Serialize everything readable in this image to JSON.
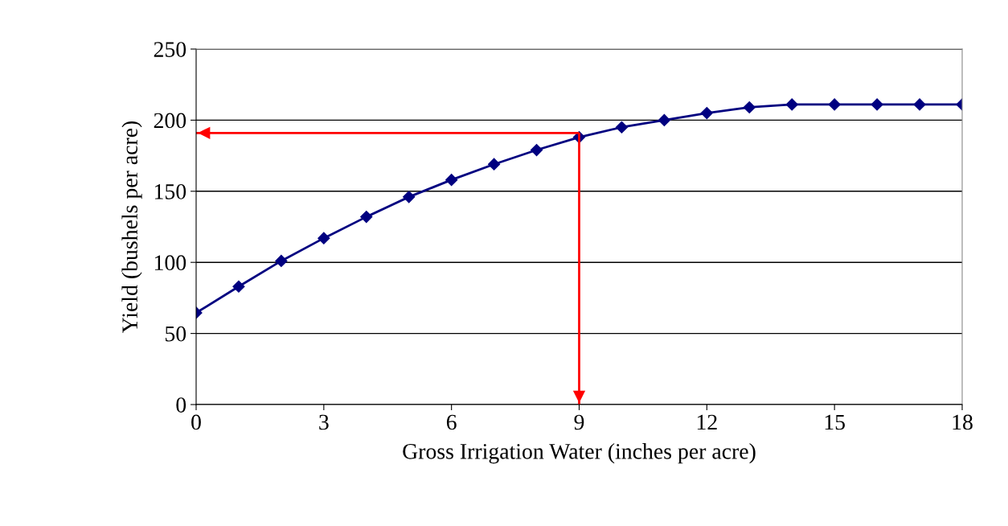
{
  "chart_data": {
    "type": "line",
    "xlabel": "Gross Irrigation Water (inches per acre)",
    "ylabel": "Yield (bushels per acre)",
    "x": [
      0,
      1,
      2,
      3,
      4,
      5,
      6,
      7,
      8,
      9,
      10,
      11,
      12,
      13,
      14,
      15,
      16,
      17,
      18
    ],
    "series": [
      {
        "color": "#000080",
        "values": [
          64.5,
          83,
          101,
          117,
          132,
          146,
          158,
          169,
          179,
          188,
          195,
          200,
          205,
          209,
          211,
          211,
          211,
          211,
          211
        ]
      }
    ],
    "xlim": [
      0,
      18
    ],
    "xticks": [
      0,
      3,
      6,
      9,
      12,
      15,
      18
    ],
    "ylim": [
      0,
      250
    ],
    "yticks": [
      0,
      50,
      100,
      150,
      200,
      250
    ],
    "grid": "y",
    "marker": "diamond",
    "line_style": "solid",
    "ref_lines": [
      {
        "axis": "x",
        "value": 9,
        "color": "#ff0000"
      },
      {
        "axis": "y",
        "value": 191,
        "color": "#ff0000"
      }
    ]
  }
}
